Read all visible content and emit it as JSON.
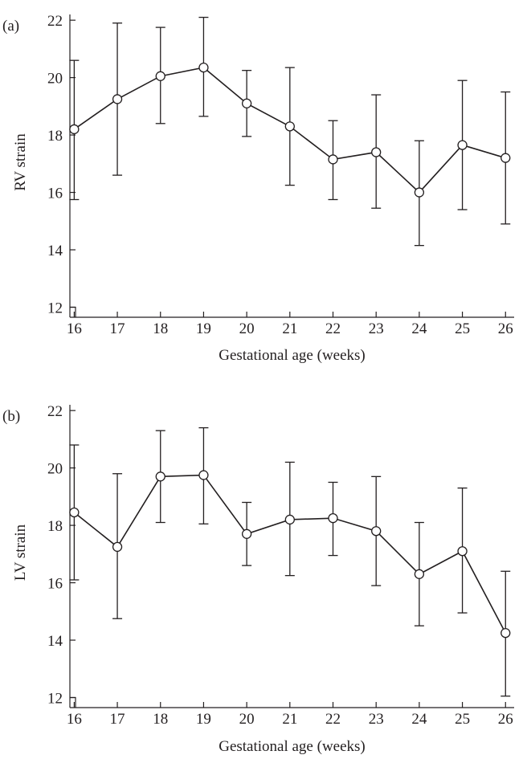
{
  "chart_data": [
    {
      "type": "line",
      "panel_label": "(a)",
      "xlabel": "Gestational age (weeks)",
      "ylabel": "RV strain",
      "x": [
        16,
        17,
        18,
        19,
        20,
        21,
        22,
        23,
        24,
        25,
        26
      ],
      "x_tick_labels": [
        "16",
        "17",
        "18",
        "19",
        "20",
        "21",
        "22",
        "23",
        "24",
        "25",
        "26"
      ],
      "y_tick_labels": [
        "12",
        "14",
        "16",
        "18",
        "20",
        "22"
      ],
      "y_ticks": [
        12,
        14,
        16,
        18,
        20,
        22
      ],
      "xlim": [
        15.9,
        26.2
      ],
      "ylim": [
        11.65,
        22.2
      ],
      "series": [
        {
          "values": [
            18.2,
            19.25,
            20.05,
            20.35,
            19.1,
            18.3,
            17.15,
            17.4,
            16.0,
            17.65,
            17.2
          ],
          "error_low": [
            15.75,
            16.6,
            18.4,
            18.65,
            17.95,
            16.25,
            15.75,
            15.45,
            14.15,
            15.4,
            14.9
          ],
          "error_high": [
            20.6,
            21.9,
            21.75,
            22.1,
            20.25,
            20.35,
            18.5,
            19.4,
            17.8,
            19.9,
            19.5
          ]
        }
      ],
      "grid": false,
      "legend": "none"
    },
    {
      "type": "line",
      "panel_label": "(b)",
      "xlabel": "Gestational age (weeks)",
      "ylabel": "LV strain",
      "x": [
        16,
        17,
        18,
        19,
        20,
        21,
        22,
        23,
        24,
        25,
        26
      ],
      "x_tick_labels": [
        "16",
        "17",
        "18",
        "19",
        "20",
        "21",
        "22",
        "23",
        "24",
        "25",
        "26"
      ],
      "y_tick_labels": [
        "12",
        "14",
        "16",
        "18",
        "20",
        "22"
      ],
      "y_ticks": [
        12,
        14,
        16,
        18,
        20,
        22
      ],
      "xlim": [
        15.9,
        26.2
      ],
      "ylim": [
        11.65,
        22.2
      ],
      "series": [
        {
          "values": [
            18.45,
            17.25,
            19.7,
            19.75,
            17.7,
            18.2,
            18.25,
            17.8,
            16.3,
            17.1,
            14.25
          ],
          "error_low": [
            16.1,
            14.75,
            18.1,
            18.05,
            16.6,
            16.25,
            16.95,
            15.9,
            14.5,
            14.95,
            12.05
          ],
          "error_high": [
            20.8,
            19.8,
            21.3,
            21.4,
            18.8,
            20.2,
            19.5,
            19.7,
            18.1,
            19.3,
            16.4
          ]
        }
      ],
      "grid": false,
      "legend": "none"
    }
  ]
}
